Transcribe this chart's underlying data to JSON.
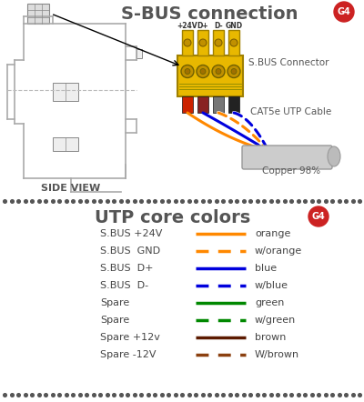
{
  "title_top": "S-BUS connection",
  "title_bottom": "UTP core colors",
  "g4_color": "#cc2222",
  "g4_text": "G4",
  "bg_color": "#ffffff",
  "dot_color": "#555555",
  "legend_rows": [
    {
      "label": "S.BUS +24V",
      "color": "#ff8800",
      "style": "solid",
      "name": "orange"
    },
    {
      "label": "S.BUS  GND",
      "color": "#ff8800",
      "style": "dashed",
      "name": "w/orange"
    },
    {
      "label": "S.BUS  D+",
      "color": "#0000dd",
      "style": "solid",
      "name": "blue"
    },
    {
      "label": "S.BUS  D-",
      "color": "#0000dd",
      "style": "dashed",
      "name": "w/blue"
    },
    {
      "label": "Spare",
      "color": "#008800",
      "style": "solid",
      "name": "green"
    },
    {
      "label": "Spare",
      "color": "#008800",
      "style": "dashed",
      "name": "w/green"
    },
    {
      "label": "Spare +12v",
      "color": "#5c1a00",
      "style": "solid",
      "name": "brown"
    },
    {
      "label": "Spare -12V",
      "color": "#8B4010",
      "style": "dashed",
      "name": "W/brown"
    }
  ],
  "connector_labels": [
    "+24V",
    "D+",
    "D-",
    "GND"
  ],
  "sbus_connector_label": "S.BUS Connector",
  "cable_label": "CAT5e UTP Cable",
  "copper_label": "Copper 98%",
  "side_view_label": "SIDE VIEW",
  "wire_colors": [
    "#cc2200",
    "#882222",
    "#777777",
    "#222222"
  ],
  "orange": "#ff8800",
  "blue": "#0000dd"
}
